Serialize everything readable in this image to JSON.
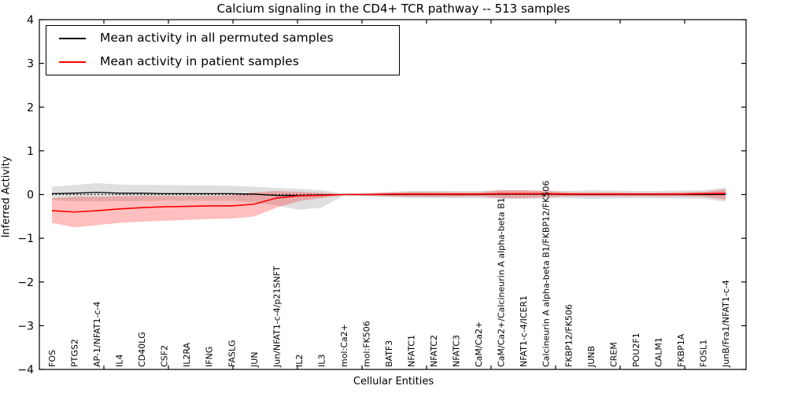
{
  "figure": {
    "title": "Calcium signaling in the CD4+ TCR pathway -- 513 samples",
    "xlabel": "Cellular Entities",
    "ylabel": "Inferred Activity"
  },
  "legend": {
    "items": [
      {
        "label": "Mean activity in all permuted samples",
        "color": "#000000"
      },
      {
        "label": "Mean activity in patient samples",
        "color": "#ff0000"
      }
    ]
  },
  "chart_data": {
    "type": "line",
    "title": "Calcium signaling in the CD4+ TCR pathway -- 513 samples",
    "xlabel": "Cellular Entities",
    "ylabel": "Inferred Activity",
    "ylim": [
      -4,
      4
    ],
    "yticks": [
      -4,
      -3,
      -2,
      -1,
      0,
      1,
      2,
      3,
      4
    ],
    "ytick_labels": [
      "−4",
      "−3",
      "−2",
      "−1",
      "0",
      "1",
      "2",
      "3",
      "4"
    ],
    "grid": false,
    "legend_position": "upper left",
    "zero_line": true,
    "categories": [
      "FOS",
      "PTGS2",
      "AP-1/NFAT1-c-4",
      "IL4",
      "CD40LG",
      "CSF2",
      "IL2RA",
      "IFNG",
      "FASLG",
      "JUN",
      "Jun/NFAT1-c-4/p21SNFT",
      "IL2",
      "IL3",
      "mol:Ca2+",
      "mol:FK506",
      "BATF3",
      "NFATC1",
      "NFATC2",
      "NFATC3",
      "CaM/Ca2+",
      "CaM/Ca2+/Calcineurin A alpha-beta B1",
      "NFAT1-c-4/ICER1",
      "Calcineurin A alpha-beta B1/FKBP12/FK506",
      "FKBP12/FK506",
      "JUNB",
      "CREM",
      "POU2F1",
      "CALM1",
      "FKBP1A",
      "FOSL1",
      "JunB/Fra1/NFAT1-c-4"
    ],
    "series": [
      {
        "name": "Mean activity in all permuted samples",
        "color": "#000000",
        "values": [
          0.02,
          0.03,
          0.05,
          0.03,
          0.03,
          0.02,
          0.02,
          0.02,
          0.02,
          0.01,
          -0.02,
          -0.02,
          -0.01,
          0.0,
          0.0,
          0.0,
          0.0,
          0.0,
          0.0,
          0.0,
          0.01,
          0.01,
          0.01,
          0.0,
          0.0,
          0.0,
          0.0,
          0.0,
          0.0,
          0.0,
          0.0
        ]
      },
      {
        "name": "Mean activity in patient samples",
        "color": "#ff0000",
        "values": [
          -0.37,
          -0.4,
          -0.37,
          -0.33,
          -0.3,
          -0.28,
          -0.27,
          -0.26,
          -0.26,
          -0.22,
          -0.08,
          -0.03,
          -0.02,
          0.0,
          0.0,
          0.01,
          0.01,
          0.01,
          0.01,
          0.01,
          0.02,
          0.02,
          0.02,
          0.01,
          0.01,
          0.01,
          0.01,
          0.01,
          0.01,
          0.02,
          0.03
        ]
      }
    ],
    "bands": [
      {
        "name": "permuted-std-band",
        "color": "rgba(128,128,128,0.25)",
        "upper": [
          0.18,
          0.22,
          0.26,
          0.23,
          0.22,
          0.22,
          0.21,
          0.21,
          0.2,
          0.18,
          0.15,
          0.13,
          0.1,
          0.02,
          0.04,
          0.06,
          0.08,
          0.08,
          0.08,
          0.08,
          0.1,
          0.1,
          0.09,
          0.08,
          0.1,
          0.09,
          0.08,
          0.08,
          0.09,
          0.1,
          0.16
        ],
        "lower": [
          -0.13,
          -0.15,
          -0.16,
          -0.15,
          -0.15,
          -0.14,
          -0.14,
          -0.14,
          -0.14,
          -0.18,
          -0.25,
          -0.35,
          -0.3,
          -0.02,
          -0.04,
          -0.06,
          -0.08,
          -0.08,
          -0.08,
          -0.08,
          -0.1,
          -0.1,
          -0.09,
          -0.08,
          -0.1,
          -0.09,
          -0.08,
          -0.08,
          -0.09,
          -0.1,
          -0.16
        ]
      },
      {
        "name": "patient-std-band",
        "color": "rgba(255,0,0,0.25)",
        "upper": [
          -0.08,
          -0.05,
          -0.05,
          -0.04,
          -0.03,
          -0.03,
          -0.03,
          -0.03,
          -0.02,
          0.05,
          0.08,
          0.06,
          0.04,
          0.01,
          0.02,
          0.04,
          0.06,
          0.06,
          0.05,
          0.05,
          0.1,
          0.1,
          0.08,
          0.05,
          0.05,
          0.05,
          0.04,
          0.04,
          0.05,
          0.06,
          0.12
        ],
        "lower": [
          -0.65,
          -0.75,
          -0.7,
          -0.65,
          -0.62,
          -0.6,
          -0.58,
          -0.56,
          -0.55,
          -0.5,
          -0.3,
          -0.15,
          -0.08,
          -0.01,
          -0.02,
          -0.04,
          -0.05,
          -0.05,
          -0.05,
          -0.04,
          -0.08,
          -0.08,
          -0.06,
          -0.04,
          -0.04,
          -0.04,
          -0.04,
          -0.04,
          -0.04,
          -0.05,
          -0.12
        ]
      }
    ]
  }
}
